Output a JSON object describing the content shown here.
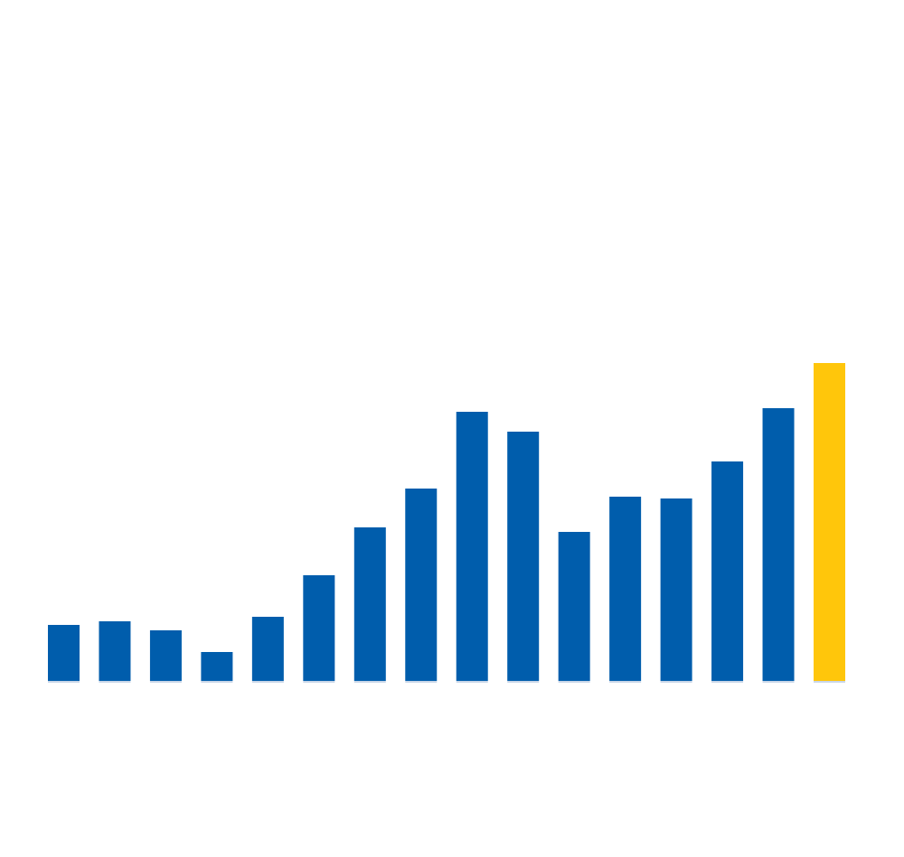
{
  "chart_data": {
    "type": "bar",
    "values": [
      62,
      66,
      56,
      32,
      71,
      117,
      170,
      213,
      298,
      276,
      165,
      204,
      202,
      243,
      302,
      352
    ],
    "colors": [
      "#005dac",
      "#005dac",
      "#005dac",
      "#005dac",
      "#005dac",
      "#005dac",
      "#005dac",
      "#005dac",
      "#005dac",
      "#005dac",
      "#005dac",
      "#005dac",
      "#005dac",
      "#005dac",
      "#005dac",
      "#ffc60b"
    ],
    "ylim": [
      0,
      754
    ]
  }
}
